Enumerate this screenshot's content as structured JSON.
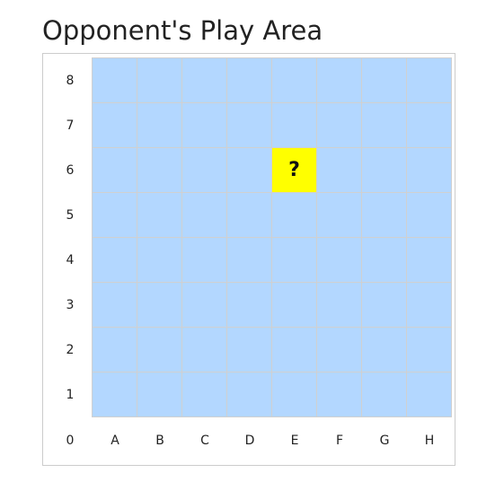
{
  "title": "Opponent's Play Area",
  "board": {
    "row_labels": [
      "8",
      "7",
      "6",
      "5",
      "4",
      "3",
      "2",
      "1"
    ],
    "corner_label": "0",
    "col_labels": [
      "A",
      "B",
      "C",
      "D",
      "E",
      "F",
      "G",
      "H"
    ],
    "marked_cell": {
      "col": "E",
      "row": "6",
      "mark": "?"
    },
    "colors": {
      "water": "#b3d7ff",
      "marked": "#ffff00",
      "grid_line": "#d0d0d0"
    }
  }
}
